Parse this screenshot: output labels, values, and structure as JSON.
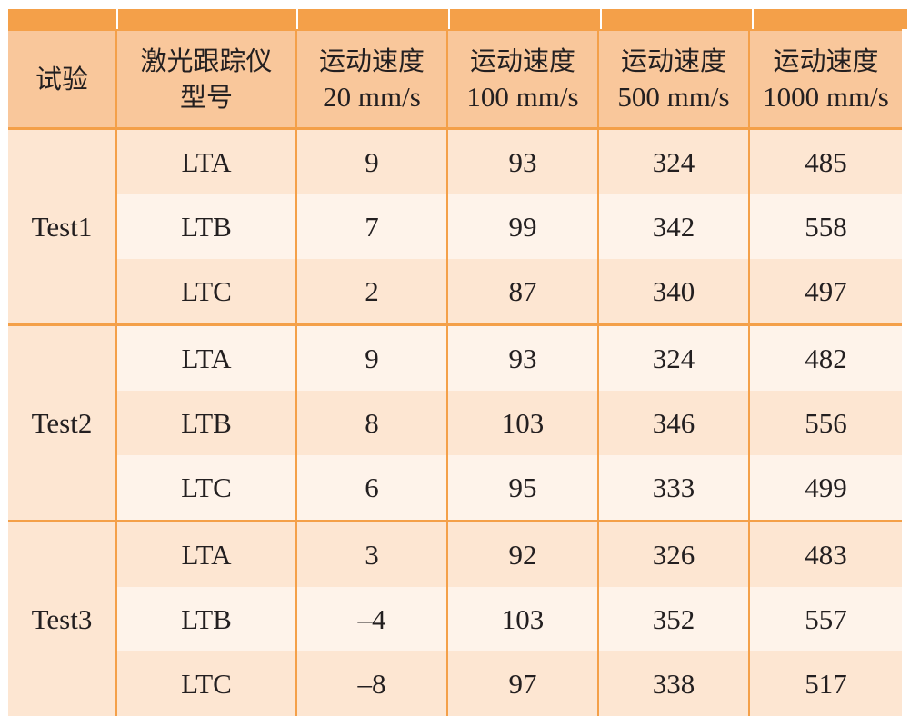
{
  "chart_data": {
    "type": "table",
    "columns": [
      {
        "lines": [
          "试验"
        ]
      },
      {
        "lines": [
          "激光跟踪仪",
          "型号"
        ]
      },
      {
        "lines": [
          "运动速度",
          "20 mm/s"
        ]
      },
      {
        "lines": [
          "运动速度",
          "100 mm/s"
        ]
      },
      {
        "lines": [
          "运动速度",
          "500 mm/s"
        ]
      },
      {
        "lines": [
          "运动速度",
          "1000 mm/s"
        ]
      }
    ],
    "groups": [
      {
        "name": "Test1",
        "rows": [
          {
            "model": "LTA",
            "values": [
              "9",
              "93",
              "324",
              "485"
            ]
          },
          {
            "model": "LTB",
            "values": [
              "7",
              "99",
              "342",
              "558"
            ]
          },
          {
            "model": "LTC",
            "values": [
              "2",
              "87",
              "340",
              "497"
            ]
          }
        ]
      },
      {
        "name": "Test2",
        "rows": [
          {
            "model": "LTA",
            "values": [
              "9",
              "93",
              "324",
              "482"
            ]
          },
          {
            "model": "LTB",
            "values": [
              "8",
              "103",
              "346",
              "556"
            ]
          },
          {
            "model": "LTC",
            "values": [
              "6",
              "95",
              "333",
              "499"
            ]
          }
        ]
      },
      {
        "name": "Test3",
        "rows": [
          {
            "model": "LTA",
            "values": [
              "3",
              "92",
              "326",
              "483"
            ]
          },
          {
            "model": "LTB",
            "values": [
              "–4",
              "103",
              "352",
              "557"
            ]
          },
          {
            "model": "LTC",
            "values": [
              "–8",
              "97",
              "338",
              "517"
            ]
          }
        ]
      }
    ],
    "colors": {
      "header": "#f9c79b",
      "border": "#f4a049",
      "row_dark": "#fde6d2",
      "row_light": "#fef3ea"
    }
  }
}
